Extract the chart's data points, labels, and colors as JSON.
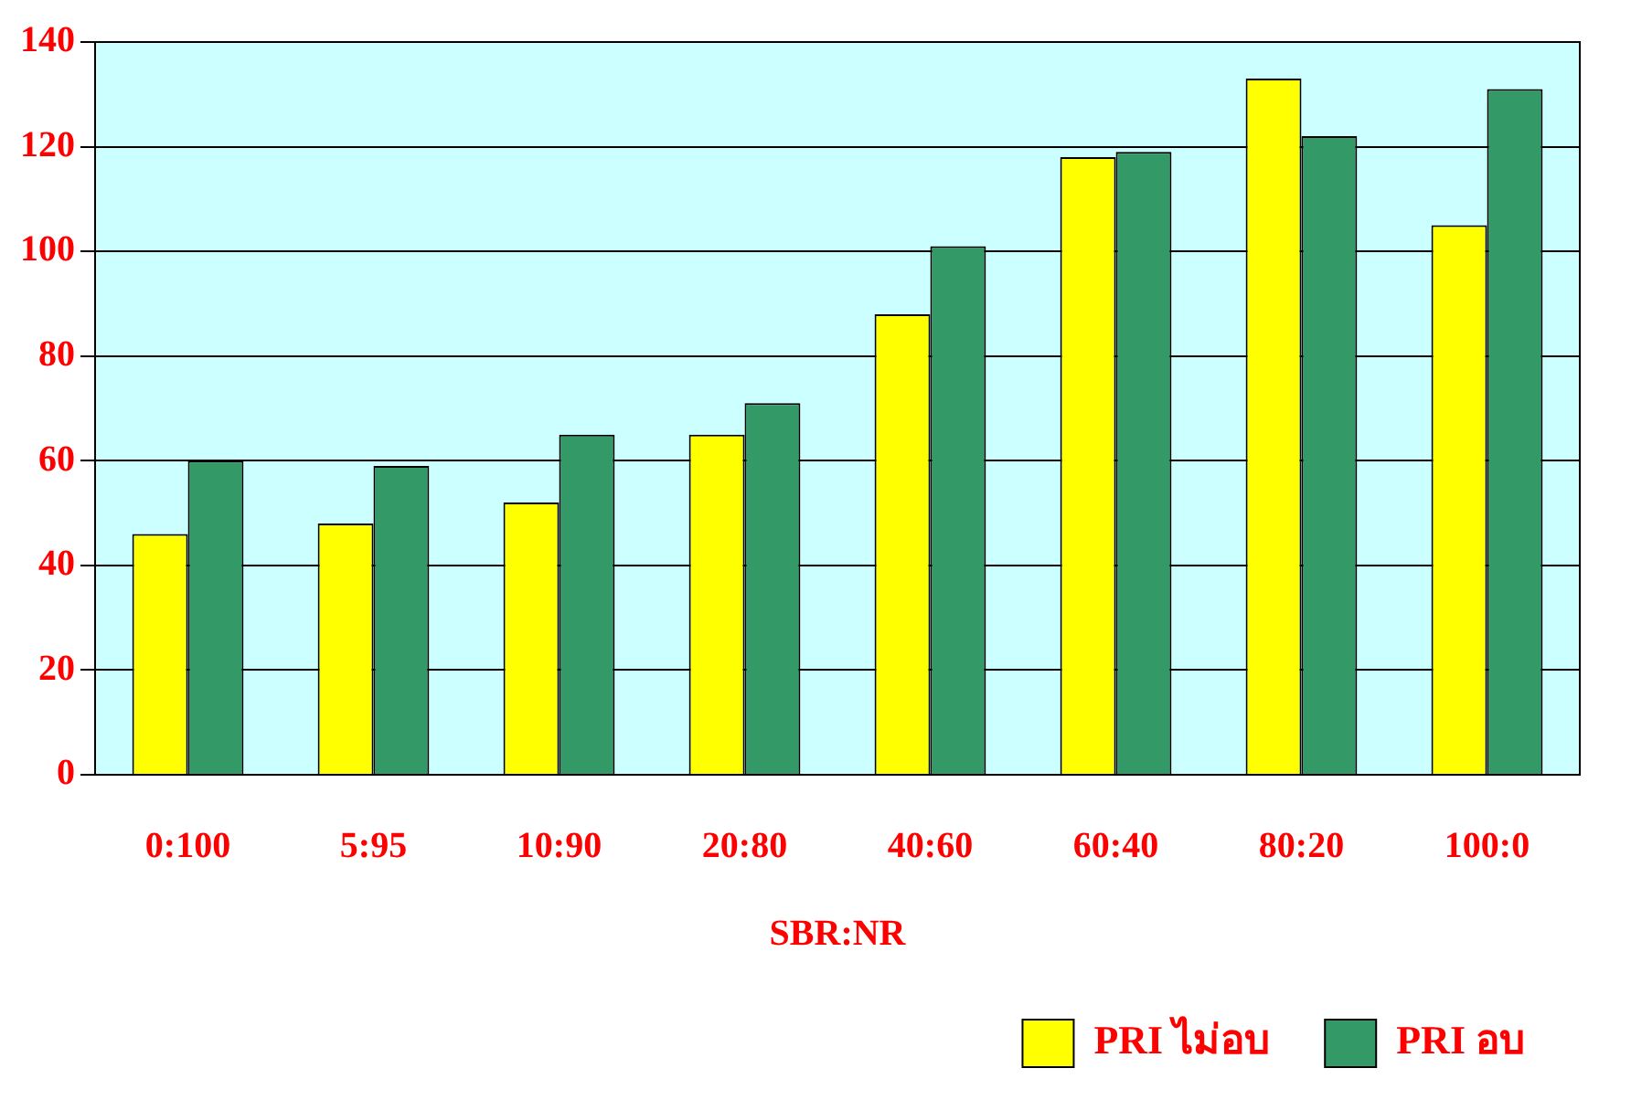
{
  "chart_data": {
    "type": "bar",
    "xlabel": "SBR:NR",
    "categories": [
      "0:100",
      "5:95",
      "10:90",
      "20:80",
      "40:60",
      "60:40",
      "80:20",
      "100:0"
    ],
    "series": [
      {
        "name": "PRI ไม่อบ",
        "color": "#ffff00",
        "values": [
          46,
          48,
          52,
          65,
          88,
          118,
          133,
          105
        ]
      },
      {
        "name": "PRI อบ",
        "color": "#339966",
        "values": [
          60,
          59,
          65,
          71,
          101,
          119,
          122,
          131
        ]
      }
    ],
    "ylim": [
      0,
      140
    ],
    "yticks": [
      0,
      20,
      40,
      60,
      80,
      100,
      120,
      140
    ],
    "grid": "y",
    "legend": "bottom right"
  }
}
